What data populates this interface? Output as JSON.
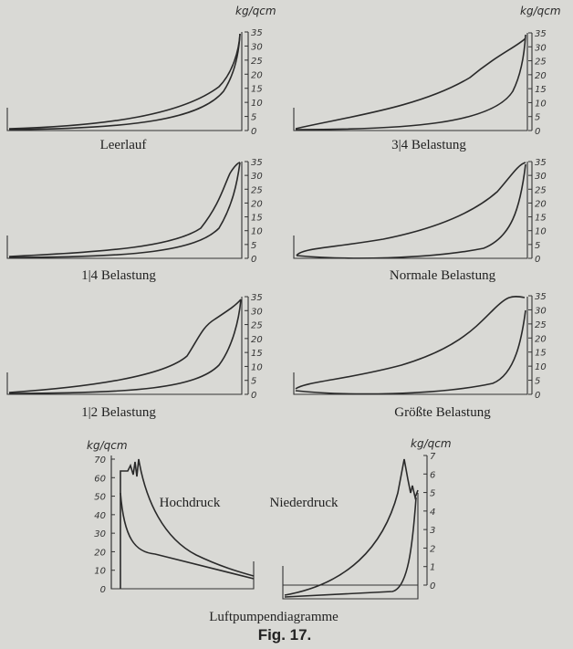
{
  "figure": {
    "title": "Luftpumpendiagramme",
    "number": "Fig. 17.",
    "unit": "kg/qcm",
    "panels": [
      {
        "id": "leerlauf",
        "label": "Leerlauf",
        "ticks": [
          "0",
          "5",
          "10",
          "15",
          "20",
          "25",
          "30",
          "35"
        ]
      },
      {
        "id": "dreiviertel",
        "label": "3|4 Belastung",
        "ticks": [
          "0",
          "5",
          "10",
          "15",
          "20",
          "25",
          "30",
          "35"
        ]
      },
      {
        "id": "viertel",
        "label": "1|4 Belastung",
        "ticks": [
          "0",
          "5",
          "10",
          "15",
          "20",
          "25",
          "30",
          "35"
        ]
      },
      {
        "id": "normale",
        "label": "Normale Belastung",
        "ticks": [
          "0",
          "5",
          "10",
          "15",
          "20",
          "25",
          "30",
          "35"
        ]
      },
      {
        "id": "halb",
        "label": "1|2 Belastung",
        "ticks": [
          "0",
          "5",
          "10",
          "15",
          "20",
          "25",
          "30",
          "35"
        ]
      },
      {
        "id": "groesste",
        "label": "Größte Belastung",
        "ticks": [
          "0",
          "5",
          "10",
          "15",
          "20",
          "25",
          "30",
          "35"
        ]
      },
      {
        "id": "hochdruck",
        "label": "Hochdruck",
        "ticks": [
          "0",
          "10",
          "20",
          "30",
          "40",
          "50",
          "60",
          "70"
        ]
      },
      {
        "id": "niederdruck",
        "label": "Niederdruck",
        "ticks": [
          "0",
          "1",
          "2",
          "3",
          "4",
          "5",
          "6",
          "7"
        ]
      }
    ]
  }
}
